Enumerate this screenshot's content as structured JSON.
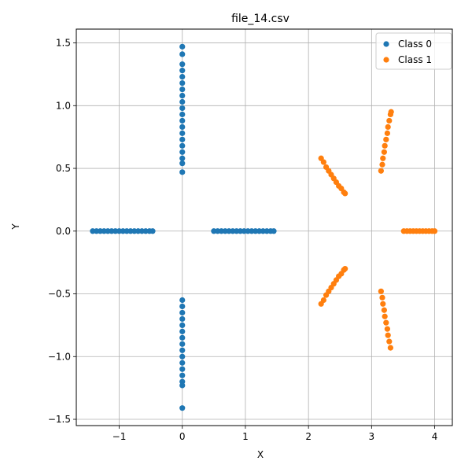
{
  "chart_data": {
    "type": "scatter",
    "title": "file_14.csv",
    "xlabel": "X",
    "ylabel": "Y",
    "xlim": [
      -1.68,
      4.28
    ],
    "ylim": [
      -1.55,
      1.61
    ],
    "xticks": [
      -1,
      0,
      1,
      2,
      3,
      4
    ],
    "xtick_labels": [
      "−1",
      "0",
      "1",
      "2",
      "3",
      "4"
    ],
    "yticks": [
      -1.5,
      -1.0,
      -0.5,
      0.0,
      0.5,
      1.0,
      1.5
    ],
    "ytick_labels": [
      "−1.5",
      "−1.0",
      "−0.5",
      "0.0",
      "0.5",
      "1.0",
      "1.5"
    ],
    "grid": true,
    "legend_position": "top-right",
    "series": [
      {
        "name": "Class 0",
        "color": "#1f77b4",
        "points": [
          [
            -1.42,
            0.0
          ],
          [
            -1.36,
            0.0
          ],
          [
            -1.3,
            0.0
          ],
          [
            -1.24,
            0.0
          ],
          [
            -1.18,
            0.0
          ],
          [
            -1.12,
            0.0
          ],
          [
            -1.06,
            0.0
          ],
          [
            -1.0,
            0.0
          ],
          [
            -0.94,
            0.0
          ],
          [
            -0.88,
            0.0
          ],
          [
            -0.82,
            0.0
          ],
          [
            -0.76,
            0.0
          ],
          [
            -0.7,
            0.0
          ],
          [
            -0.64,
            0.0
          ],
          [
            -0.58,
            0.0
          ],
          [
            -0.52,
            0.0
          ],
          [
            -0.47,
            0.0
          ],
          [
            0.5,
            0.0
          ],
          [
            0.56,
            0.0
          ],
          [
            0.62,
            0.0
          ],
          [
            0.68,
            0.0
          ],
          [
            0.74,
            0.0
          ],
          [
            0.8,
            0.0
          ],
          [
            0.86,
            0.0
          ],
          [
            0.92,
            0.0
          ],
          [
            0.98,
            0.0
          ],
          [
            1.04,
            0.0
          ],
          [
            1.1,
            0.0
          ],
          [
            1.16,
            0.0
          ],
          [
            1.22,
            0.0
          ],
          [
            1.28,
            0.0
          ],
          [
            1.34,
            0.0
          ],
          [
            1.4,
            0.0
          ],
          [
            1.45,
            0.0
          ],
          [
            0.0,
            0.47
          ],
          [
            0.0,
            0.54
          ],
          [
            0.0,
            0.58
          ],
          [
            0.0,
            0.63
          ],
          [
            0.0,
            0.68
          ],
          [
            0.0,
            0.73
          ],
          [
            0.0,
            0.78
          ],
          [
            0.0,
            0.83
          ],
          [
            0.0,
            0.88
          ],
          [
            0.0,
            0.93
          ],
          [
            0.0,
            0.98
          ],
          [
            0.0,
            1.03
          ],
          [
            0.0,
            1.08
          ],
          [
            0.0,
            1.13
          ],
          [
            0.0,
            1.18
          ],
          [
            0.0,
            1.23
          ],
          [
            0.0,
            1.28
          ],
          [
            0.0,
            1.33
          ],
          [
            0.0,
            1.41
          ],
          [
            0.0,
            1.47
          ],
          [
            0.0,
            -0.55
          ],
          [
            0.0,
            -0.6
          ],
          [
            0.0,
            -0.65
          ],
          [
            0.0,
            -0.7
          ],
          [
            0.0,
            -0.75
          ],
          [
            0.0,
            -0.8
          ],
          [
            0.0,
            -0.85
          ],
          [
            0.0,
            -0.9
          ],
          [
            0.0,
            -0.95
          ],
          [
            0.0,
            -1.0
          ],
          [
            0.0,
            -1.05
          ],
          [
            0.0,
            -1.1
          ],
          [
            0.0,
            -1.15
          ],
          [
            0.0,
            -1.2
          ],
          [
            0.0,
            -1.23
          ],
          [
            0.0,
            -1.41
          ]
        ]
      },
      {
        "name": "Class 1",
        "color": "#ff7f0e",
        "points": [
          [
            2.2,
            0.58
          ],
          [
            2.24,
            0.55
          ],
          [
            2.28,
            0.51
          ],
          [
            2.32,
            0.48
          ],
          [
            2.36,
            0.45
          ],
          [
            2.4,
            0.42
          ],
          [
            2.44,
            0.39
          ],
          [
            2.48,
            0.36
          ],
          [
            2.52,
            0.34
          ],
          [
            2.56,
            0.31
          ],
          [
            2.58,
            0.3
          ],
          [
            2.2,
            -0.58
          ],
          [
            2.24,
            -0.55
          ],
          [
            2.28,
            -0.51
          ],
          [
            2.32,
            -0.48
          ],
          [
            2.36,
            -0.45
          ],
          [
            2.4,
            -0.42
          ],
          [
            2.44,
            -0.39
          ],
          [
            2.48,
            -0.36
          ],
          [
            2.52,
            -0.34
          ],
          [
            2.56,
            -0.31
          ],
          [
            2.58,
            -0.3
          ],
          [
            3.15,
            0.48
          ],
          [
            3.17,
            0.53
          ],
          [
            3.18,
            0.58
          ],
          [
            3.2,
            0.63
          ],
          [
            3.21,
            0.68
          ],
          [
            3.23,
            0.73
          ],
          [
            3.25,
            0.78
          ],
          [
            3.26,
            0.83
          ],
          [
            3.28,
            0.88
          ],
          [
            3.3,
            0.93
          ],
          [
            3.31,
            0.95
          ],
          [
            3.15,
            -0.48
          ],
          [
            3.17,
            -0.53
          ],
          [
            3.18,
            -0.58
          ],
          [
            3.2,
            -0.63
          ],
          [
            3.21,
            -0.68
          ],
          [
            3.23,
            -0.73
          ],
          [
            3.25,
            -0.78
          ],
          [
            3.26,
            -0.83
          ],
          [
            3.28,
            -0.88
          ],
          [
            3.3,
            -0.93
          ],
          [
            3.51,
            0.0
          ],
          [
            3.56,
            0.0
          ],
          [
            3.61,
            0.0
          ],
          [
            3.66,
            0.0
          ],
          [
            3.71,
            0.0
          ],
          [
            3.76,
            0.0
          ],
          [
            3.81,
            0.0
          ],
          [
            3.86,
            0.0
          ],
          [
            3.91,
            0.0
          ],
          [
            3.96,
            0.0
          ],
          [
            4.0,
            0.0
          ]
        ]
      }
    ]
  }
}
